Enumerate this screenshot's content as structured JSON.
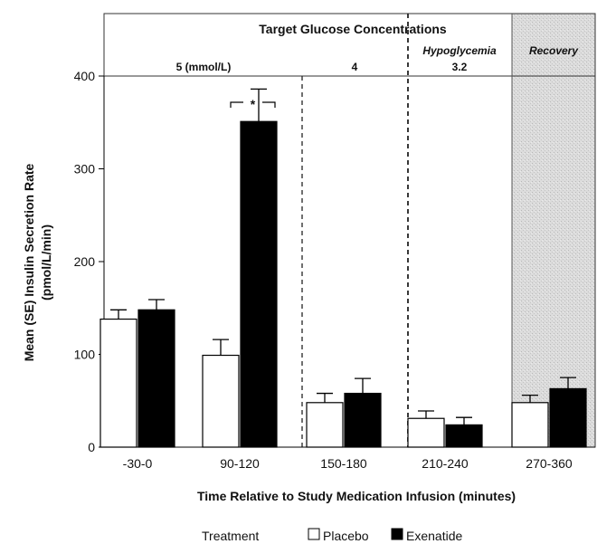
{
  "chart_data": {
    "type": "bar",
    "header_title": "Target Glucose Concentrations",
    "regions": [
      {
        "label": "5 (mmol/L)",
        "sublabel": "",
        "categories": [
          "-30-0",
          "90-120"
        ]
      },
      {
        "label": "4",
        "sublabel": "",
        "categories": [
          "150-180"
        ]
      },
      {
        "label": "3.2",
        "sublabel": "Hypoglycemia",
        "categories": [
          "210-240"
        ]
      },
      {
        "label": "",
        "sublabel": "Recovery",
        "categories": [
          "270-360"
        ],
        "shaded": true
      }
    ],
    "categories": [
      "-30-0",
      "90-120",
      "150-180",
      "210-240",
      "270-360"
    ],
    "series": [
      {
        "name": "Placebo",
        "color": "#ffffff",
        "values": [
          138,
          99,
          48,
          31,
          48
        ],
        "errors": [
          10,
          17,
          10,
          8,
          8
        ]
      },
      {
        "name": "Exenatide",
        "color": "#000000",
        "values": [
          148,
          351,
          58,
          24,
          63
        ],
        "errors": [
          11,
          35,
          16,
          8,
          12
        ]
      }
    ],
    "xlabel": "Time Relative to Study Medication Infusion (minutes)",
    "ylabel_lines": [
      "Mean (SE) Insulin Secretion Rate",
      "(pmol/L/min)"
    ],
    "ylim": [
      0,
      400
    ],
    "yticks": [
      0,
      100,
      200,
      300,
      400
    ],
    "significance": {
      "category": "90-120",
      "marker": "*"
    },
    "legend": {
      "title": "Treatment",
      "position": "bottom"
    }
  }
}
